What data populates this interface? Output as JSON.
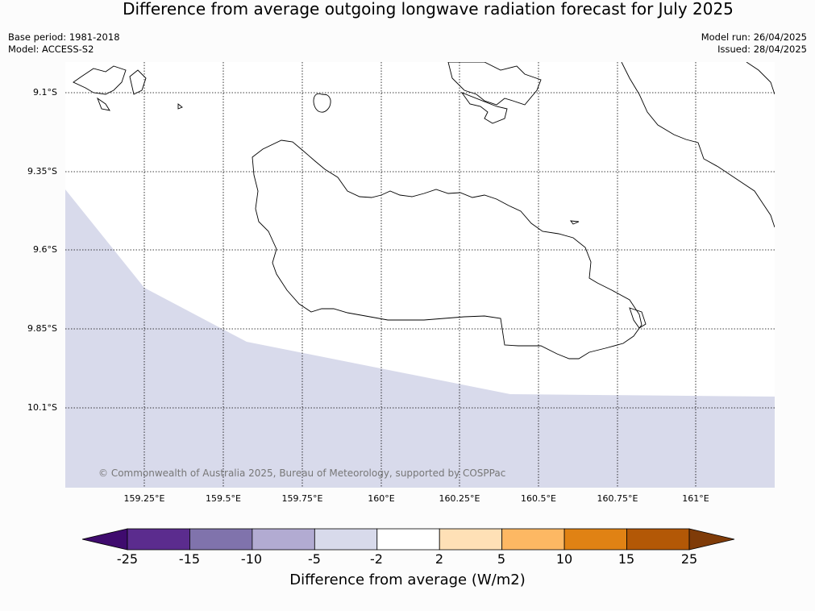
{
  "title": "Difference from average outgoing longwave radiation forecast for July 2025",
  "base_period": "Base period: 1981-2018",
  "model": "Model: ACCESS-S2",
  "model_run": "Model run: 26/04/2025",
  "issued": "Issued: 28/04/2025",
  "copyright": "© Commonwealth of Australia 2025, Bureau of Meteorology, supported by COSPPac",
  "lat_labels": [
    "9.1°S",
    "9.35°S",
    "9.6°S",
    "9.85°S",
    "10.1°S"
  ],
  "lon_labels": [
    "159.25°E",
    "159.5°E",
    "159.75°E",
    "160°E",
    "160.25°E",
    "160.5°E",
    "160.75°E",
    "161°E"
  ],
  "colorbar": {
    "title": "Difference from average (W/m2)",
    "ticks": [
      "-25",
      "-15",
      "-10",
      "-5",
      "-2",
      "2",
      "5",
      "10",
      "15",
      "25"
    ],
    "colors": [
      "#3f0b6e",
      "#5b2c8e",
      "#8073ac",
      "#b2abd2",
      "#d8daeb",
      "#ffffff",
      "#fee0b6",
      "#fdb863",
      "#e08214",
      "#b35806",
      "#7f3b08"
    ]
  },
  "shading": {
    "region_color": "#d8daeb",
    "category": "-5 to -2"
  }
}
